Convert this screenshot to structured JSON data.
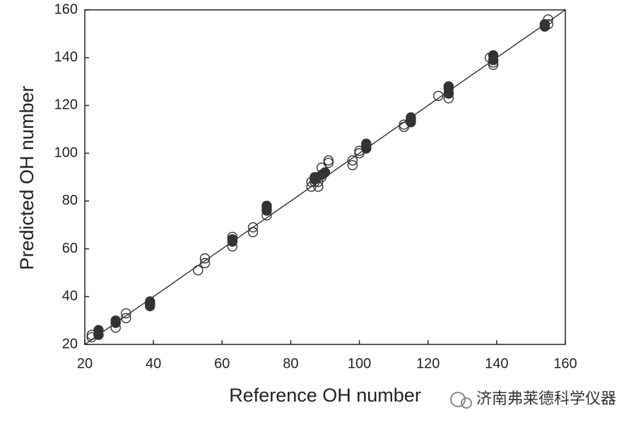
{
  "chart_data": {
    "type": "scatter",
    "xlabel": "Reference OH number",
    "ylabel": "Predicted OH number",
    "xlim": [
      20,
      160
    ],
    "ylim": [
      20,
      160
    ],
    "xticks": [
      20,
      40,
      60,
      80,
      100,
      120,
      140,
      160
    ],
    "yticks": [
      20,
      40,
      60,
      80,
      100,
      120,
      140,
      160
    ],
    "diagonal": true,
    "series": [
      {
        "color": "#333333",
        "filled": false,
        "x": [
          22,
          22,
          24,
          29,
          32,
          32,
          39,
          53,
          55,
          55,
          63,
          63,
          69,
          69,
          73,
          86,
          86,
          87,
          88,
          88,
          89,
          89,
          91,
          91,
          98,
          98,
          100,
          100,
          113,
          113,
          123,
          126,
          126,
          138,
          139,
          139,
          155,
          155
        ],
        "values": [
          23,
          24,
          24,
          27,
          31,
          33,
          37,
          51,
          54,
          56,
          61,
          65,
          67,
          69,
          74,
          86,
          88,
          88,
          86,
          88,
          90,
          94,
          96,
          97,
          95,
          97,
          100,
          101,
          111,
          112,
          124,
          123,
          125,
          140,
          138,
          137,
          154,
          156
        ]
      },
      {
        "color": "#333333",
        "filled": true,
        "x": [
          24,
          24,
          29,
          29,
          39,
          39,
          39,
          63,
          63,
          73,
          73,
          73,
          87,
          87,
          89,
          90,
          102,
          102,
          102,
          115,
          115,
          115,
          126,
          126,
          126,
          139,
          139,
          154,
          154
        ],
        "values": [
          24,
          26,
          29,
          30,
          36,
          37,
          38,
          63,
          64,
          76,
          77,
          78,
          89,
          90,
          91,
          92,
          102,
          103,
          104,
          113,
          114,
          115,
          125,
          127,
          128,
          139,
          141,
          153,
          154
        ]
      }
    ],
    "watermark": "济南弗莱德科学仪器"
  }
}
